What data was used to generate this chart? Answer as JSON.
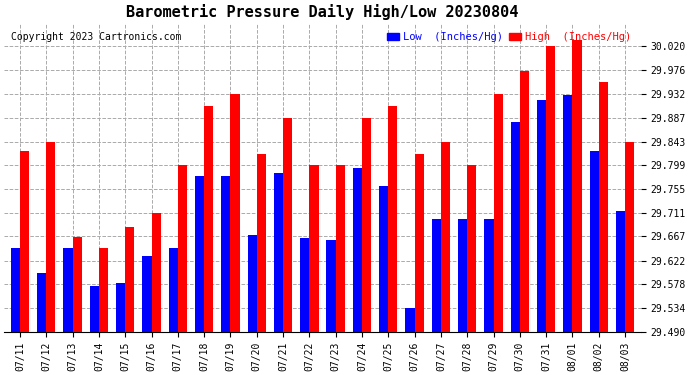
{
  "title": "Barometric Pressure Daily High/Low 20230804",
  "copyright": "Copyright 2023 Cartronics.com",
  "legend_low": "Low  (Inches/Hg)",
  "legend_high": "High  (Inches/Hg)",
  "categories": [
    "07/11",
    "07/12",
    "07/13",
    "07/14",
    "07/15",
    "07/16",
    "07/17",
    "07/18",
    "07/19",
    "07/20",
    "07/21",
    "07/22",
    "07/23",
    "07/24",
    "07/25",
    "07/26",
    "07/27",
    "07/28",
    "07/29",
    "07/30",
    "07/31",
    "08/01",
    "08/02",
    "08/03"
  ],
  "low_values": [
    29.645,
    29.6,
    29.645,
    29.575,
    29.58,
    29.63,
    29.645,
    29.78,
    29.78,
    29.67,
    29.785,
    29.665,
    29.66,
    29.795,
    29.76,
    29.535,
    29.7,
    29.7,
    29.7,
    29.88,
    29.92,
    29.93,
    29.825,
    29.715
  ],
  "high_values": [
    29.826,
    29.843,
    29.666,
    29.645,
    29.684,
    29.711,
    29.799,
    29.909,
    29.931,
    29.821,
    29.887,
    29.799,
    29.799,
    29.887,
    29.909,
    29.821,
    29.843,
    29.799,
    29.931,
    29.975,
    30.02,
    30.031,
    29.953,
    29.843
  ],
  "ylim_min": 29.49,
  "ylim_max": 30.064,
  "yticks": [
    29.49,
    29.534,
    29.578,
    29.622,
    29.667,
    29.711,
    29.755,
    29.799,
    29.843,
    29.887,
    29.932,
    29.976,
    30.02
  ],
  "bar_width": 0.35,
  "low_color": "#0000ff",
  "high_color": "#ff0000",
  "bg_color": "#ffffff",
  "grid_color": "#aaaaaa",
  "title_fontsize": 11,
  "tick_fontsize": 7,
  "copyright_fontsize": 7
}
